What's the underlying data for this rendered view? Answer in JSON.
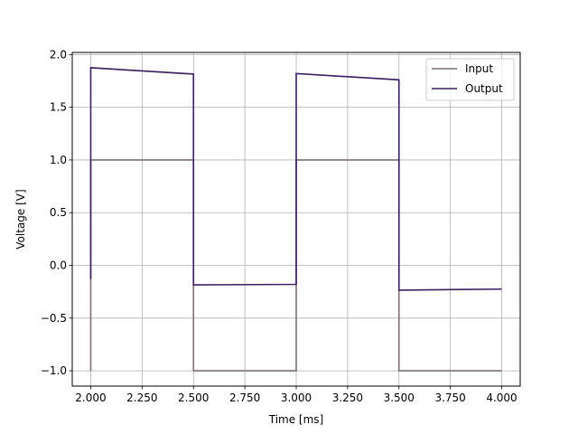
{
  "chart_data": {
    "type": "line",
    "title": "",
    "xlabel": "Time [ms]",
    "ylabel": "Voltage [V]",
    "xlim": [
      1.91,
      4.09
    ],
    "ylim": [
      -1.145,
      2.02
    ],
    "xticks": [
      2.0,
      2.25,
      2.5,
      2.75,
      3.0,
      3.25,
      3.5,
      3.75,
      4.0
    ],
    "xtick_labels": [
      "2.000",
      "2.250",
      "2.500",
      "2.750",
      "3.000",
      "3.250",
      "3.500",
      "3.750",
      "4.000"
    ],
    "yticks": [
      -1.0,
      -0.5,
      0.0,
      0.5,
      1.0,
      1.5,
      2.0
    ],
    "ytick_labels": [
      "−1.0",
      "−0.5",
      "0.0",
      "0.5",
      "1.0",
      "1.5",
      "2.0"
    ],
    "grid": true,
    "legend_position": "top-right",
    "series": [
      {
        "name": "Input",
        "color": "#7f6f76",
        "x": [
          2.0,
          2.0,
          2.5,
          2.5,
          3.0,
          3.0,
          3.5,
          3.5,
          4.0
        ],
        "y": [
          -1.0,
          1.0,
          1.0,
          -1.0,
          -1.0,
          1.0,
          1.0,
          -1.0,
          -1.0
        ]
      },
      {
        "name": "Output",
        "color": "#3b1f5e",
        "x": [
          2.0,
          2.0,
          2.5,
          2.5,
          3.0,
          3.0,
          3.5,
          3.5,
          4.0
        ],
        "y": [
          -0.13,
          1.875,
          1.815,
          -0.185,
          -0.18,
          1.82,
          1.76,
          -0.235,
          -0.225
        ]
      }
    ]
  }
}
